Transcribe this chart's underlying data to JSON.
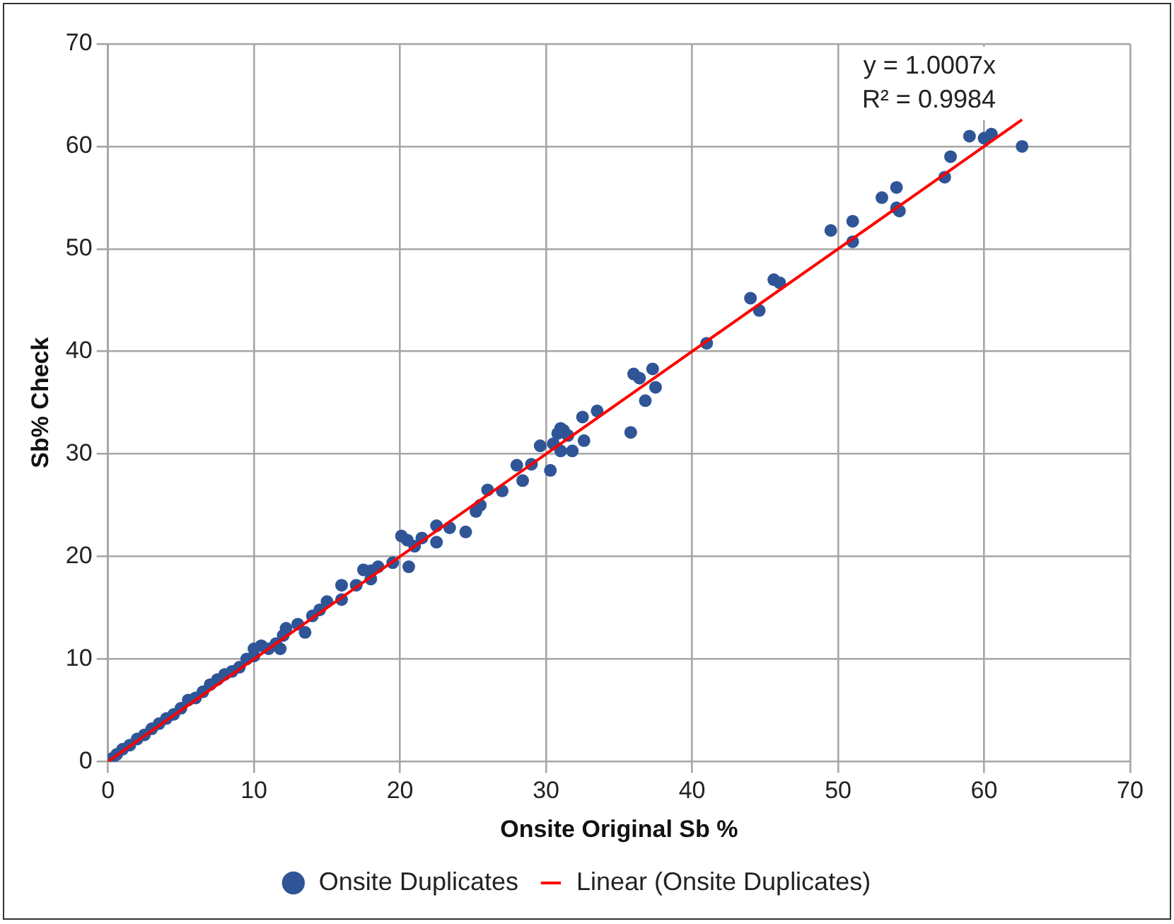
{
  "chart_data": {
    "type": "scatter",
    "xlabel": "Onsite Original Sb %",
    "ylabel": "Sb% Check",
    "xlim": [
      0,
      70
    ],
    "ylim": [
      0,
      70
    ],
    "xticks": [
      0,
      10,
      20,
      30,
      40,
      50,
      60,
      70
    ],
    "yticks": [
      0,
      10,
      20,
      30,
      40,
      50,
      60,
      70
    ],
    "grid": true,
    "legend": "bottom",
    "marker": "circle",
    "annotations": [
      "y = 1.0007x",
      "R² = 0.9984"
    ],
    "series": [
      {
        "name": "Onsite Duplicates",
        "color": "#2f5597",
        "x": [
          59,
          60,
          60.5,
          62.6,
          57.7,
          57.3,
          54,
          53,
          54,
          54.2,
          51,
          49.5,
          51,
          45.6,
          46,
          44,
          44.6,
          41,
          36,
          36.4,
          37.3,
          37.5,
          36.8,
          35.8,
          33.5,
          32.5,
          32.6,
          31,
          31.2,
          30.8,
          31.5,
          30.5,
          31,
          31.8,
          29.6,
          30.3,
          29,
          28,
          28.4,
          27,
          26,
          25.5,
          25.2,
          24.5,
          23.4,
          22.5,
          22.5,
          21.5,
          21,
          20.1,
          20.5,
          20.6,
          19.5,
          18.5,
          18,
          17.5,
          18,
          17,
          16,
          16,
          15,
          14.5,
          14,
          13.5,
          13,
          12.2,
          12,
          11.8,
          11.5,
          11,
          10.5,
          10,
          10,
          9.5,
          9,
          8.5,
          8,
          7.5,
          7,
          6.5,
          6,
          5.5,
          5,
          4.5,
          4,
          3.5,
          3,
          2.5,
          2,
          1.5,
          1,
          0.6,
          0.3,
          0.1
        ],
        "values": [
          61,
          60.8,
          61.2,
          60,
          59,
          57,
          56,
          55,
          54,
          53.7,
          52.7,
          51.8,
          50.7,
          47,
          46.7,
          45.2,
          44,
          40.8,
          37.8,
          37.4,
          38.3,
          36.5,
          35.2,
          32.1,
          34.2,
          33.6,
          31.3,
          32.5,
          32.3,
          32,
          31.8,
          31,
          30.3,
          30.3,
          30.8,
          28.4,
          29,
          28.9,
          27.4,
          26.4,
          26.5,
          25,
          24.4,
          22.4,
          22.8,
          23,
          21.4,
          21.8,
          21,
          22,
          21.6,
          19,
          19.4,
          19,
          18.6,
          18.7,
          17.8,
          17.2,
          17.2,
          15.8,
          15.6,
          14.8,
          14.2,
          12.6,
          13.4,
          13,
          12.3,
          11,
          11.5,
          11,
          11.3,
          10.3,
          11,
          10,
          9.2,
          8.8,
          8.5,
          8,
          7.5,
          6.8,
          6.2,
          6,
          5.2,
          4.6,
          4.2,
          3.7,
          3.2,
          2.6,
          2.2,
          1.6,
          1.2,
          0.7,
          0.3,
          0.2
        ]
      },
      {
        "name": "Linear (Onsite Duplicates)",
        "type": "line",
        "color": "#ff0000",
        "marker": "none",
        "x": [
          0,
          62.6
        ],
        "values": [
          0,
          62.6
        ]
      }
    ]
  }
}
